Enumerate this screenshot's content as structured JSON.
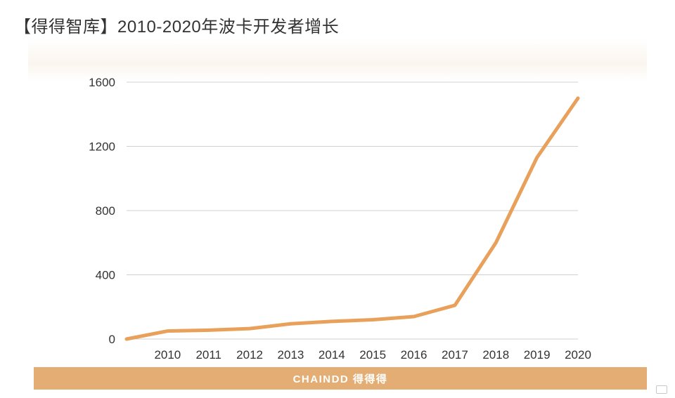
{
  "title": "【得得智库】2010-2020年波卡开发者增长",
  "footer": {
    "brand": "CHAINDD 得得得"
  },
  "watermark": {
    "text": ""
  },
  "colors": {
    "line": "#e8a05a",
    "footer": "#e3ad74",
    "grid": "#d0d0d0",
    "text": "#333333"
  },
  "chart_data": {
    "type": "line",
    "x": [
      "",
      "2010",
      "2011",
      "2012",
      "2013",
      "2014",
      "2015",
      "2016",
      "2017",
      "2018",
      "2019",
      "2020"
    ],
    "xticks": [
      "2010",
      "2011",
      "2012",
      "2013",
      "2014",
      "2015",
      "2016",
      "2017",
      "2018",
      "2019",
      "2020"
    ],
    "values": [
      0,
      50,
      55,
      65,
      95,
      110,
      120,
      140,
      210,
      600,
      1130,
      1500
    ],
    "yticks": [
      0,
      400,
      800,
      1200,
      1600
    ],
    "ylim": [
      0,
      1600
    ],
    "grid": true
  }
}
